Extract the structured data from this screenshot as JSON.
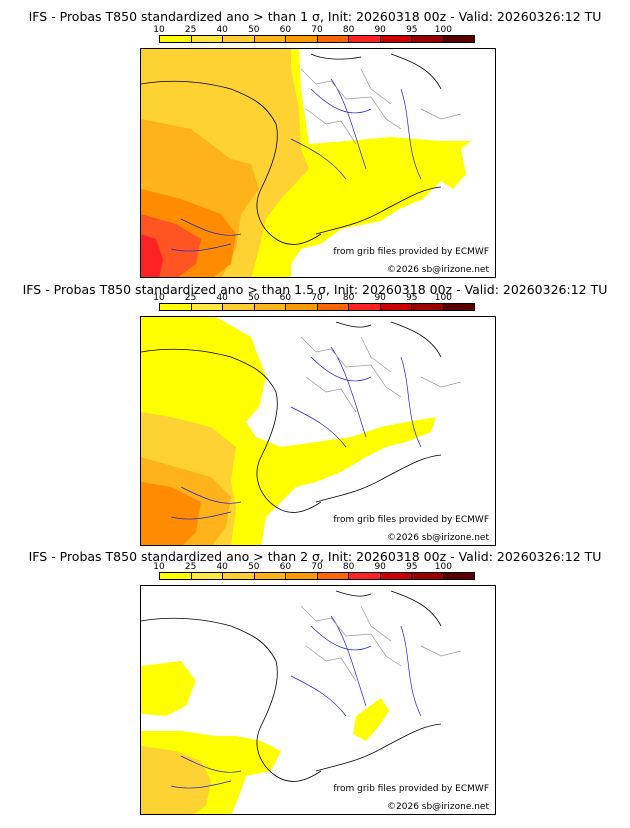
{
  "panels": [
    {
      "title": "IFS - Probas T850  standardized ano > than 1 σ, Init: 20260318 00z - Valid: 20260326:12 TU",
      "credit_1": "from grib files provided by ECMWF",
      "credit_2": "©2026 sb@irizone.net"
    },
    {
      "title": "IFS - Probas T850  standardized ano > than 1.5 σ, Init: 20260318 00z - Valid: 20260326:12 TU",
      "credit_1": "from grib files provided by ECMWF",
      "credit_2": "©2026 sb@irizone.net"
    },
    {
      "title": "IFS - Probas T850  standardized ano > than 2 σ, Init: 20260318 00z - Valid: 20260326:12 TU",
      "credit_1": "from grib files provided by ECMWF",
      "credit_2": "©2026 sb@irizone.net"
    }
  ],
  "colorbar": {
    "labels": [
      "10",
      "25",
      "40",
      "50",
      "60",
      "70",
      "80",
      "90",
      "95",
      "100"
    ],
    "colors": [
      "#ffff00",
      "#ffe640",
      "#ffcc33",
      "#ffb31a",
      "#ff9900",
      "#ff6600",
      "#ff2222",
      "#cc0000",
      "#990000",
      "#5a0000"
    ]
  },
  "legend_swatches": {
    "yellow": "#ffff00",
    "light_orange": "#ffd233",
    "orange": "#ffb31a",
    "dark_orange": "#ff8c00",
    "red_orange": "#ff5522",
    "red": "#ff2222",
    "coast": "#000000",
    "river": "#2222cc",
    "border": "#9a9a9a"
  }
}
